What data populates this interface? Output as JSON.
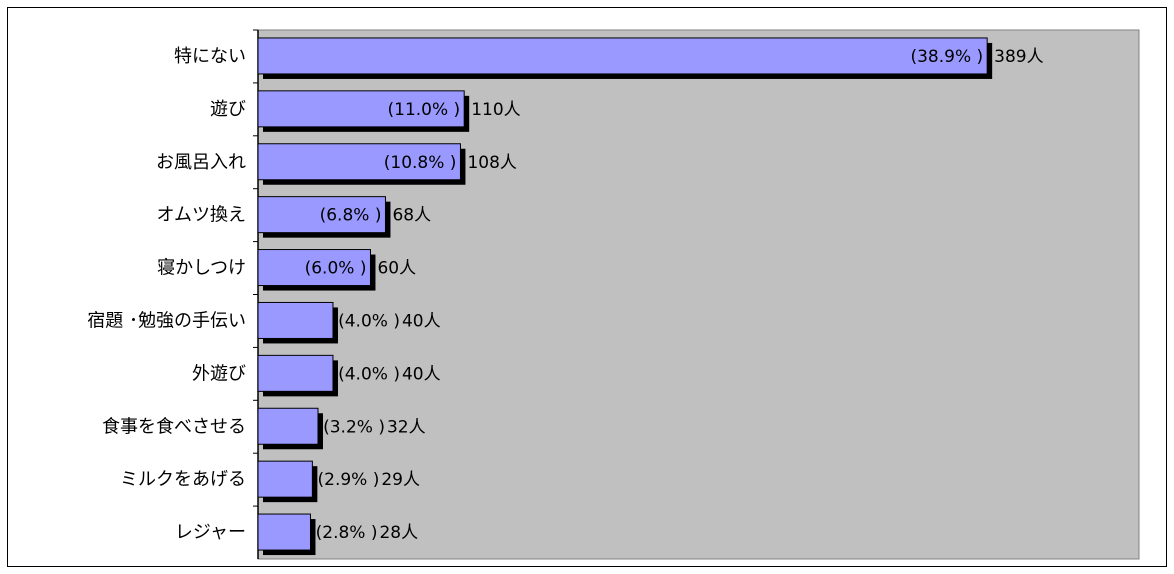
{
  "chart_data": {
    "type": "bar",
    "orientation": "horizontal",
    "categories": [
      "特にない",
      "遊び",
      "お風呂入れ",
      "オムツ換え",
      "寝かしつけ",
      "宿題 ･勉強の手伝い",
      "外遊び",
      "食事を食べさせる",
      "ミルクをあげる",
      "レジャー"
    ],
    "values": [
      389,
      110,
      108,
      68,
      60,
      40,
      40,
      32,
      29,
      28
    ],
    "percents": [
      38.9,
      11.0,
      10.8,
      6.8,
      6.0,
      4.0,
      4.0,
      3.2,
      2.9,
      2.8
    ],
    "data_labels": [
      {
        "pct": "(38.9% )",
        "count": "389人"
      },
      {
        "pct": "(11.0% )",
        "count": "110人"
      },
      {
        "pct": "(10.8% )",
        "count": "108人"
      },
      {
        "pct": "(6.8% )",
        "count": "68人"
      },
      {
        "pct": "(6.0% )",
        "count": "60人"
      },
      {
        "pct": "(4.0% )",
        "count": "40人"
      },
      {
        "pct": "(4.0% )",
        "count": "40人"
      },
      {
        "pct": "(3.2% )",
        "count": "32人"
      },
      {
        "pct": "(2.9% )",
        "count": "29人"
      },
      {
        "pct": "(2.8% )",
        "count": "28人"
      }
    ],
    "title": "",
    "xlabel": "",
    "ylabel": "",
    "xlim": [
      0,
      470
    ],
    "grid": false,
    "legend": "none",
    "colors": {
      "bar": "#9999ff",
      "bar_border": "#000000",
      "bar_shadow": "#000000",
      "plot_background": "#c0c0c0"
    }
  }
}
